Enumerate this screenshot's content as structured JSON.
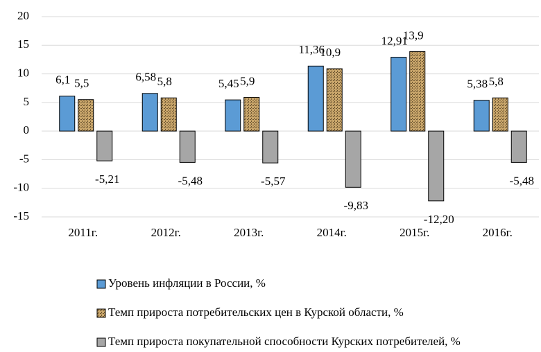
{
  "chart_data": {
    "type": "bar",
    "categories": [
      "2011г.",
      "2012г.",
      "2013г.",
      "2014г.",
      "2015г.",
      "2016г."
    ],
    "series": [
      {
        "name": "Уровень инфляции в России, %",
        "color": "#5b9bd5",
        "pattern": false,
        "values": [
          6.1,
          6.58,
          5.45,
          11.36,
          12.91,
          5.38
        ],
        "value_labels": [
          "6,1",
          "6,58",
          "5,45",
          "11,36",
          "12,91",
          "5,38"
        ]
      },
      {
        "name": "Темп прироста потребительских цен в Курской области, %",
        "color": "#c9a66b",
        "pattern": true,
        "values": [
          5.5,
          5.8,
          5.9,
          10.9,
          13.9,
          5.8
        ],
        "value_labels": [
          "5,5",
          "5,8",
          "5,9",
          "10,9",
          "13,9",
          "5,8"
        ]
      },
      {
        "name": "Темп прироста покупательной способности Курских потребителей, %",
        "color": "#a6a6a6",
        "pattern": false,
        "values": [
          -5.21,
          -5.48,
          -5.57,
          -9.83,
          -12.2,
          -5.48
        ],
        "value_labels": [
          "-5,21",
          "-5,48",
          "-5,57",
          "-9,83",
          "-12,20",
          "-5,48"
        ]
      }
    ],
    "ylim": [
      -15,
      20
    ],
    "yticks": [
      20,
      15,
      10,
      5,
      0,
      -5,
      -10,
      -15
    ],
    "grid": true,
    "legend": "bottom"
  }
}
